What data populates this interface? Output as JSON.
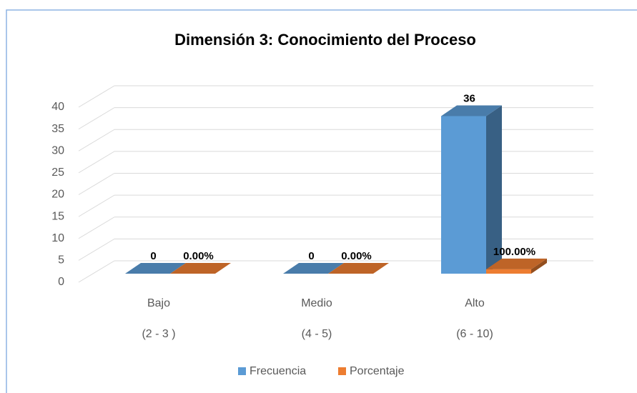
{
  "chart_data": {
    "type": "bar3d",
    "title": "Dimensión 3: Conocimiento del Proceso",
    "categories": [
      "Bajo",
      "Medio",
      "Alto"
    ],
    "category_ranges": [
      "(2 - 3 )",
      "(4 - 5)",
      "(6 - 10)"
    ],
    "series": [
      {
        "name": "Frecuencia",
        "color": "#5b9bd5",
        "values": [
          0,
          0,
          36
        ]
      },
      {
        "name": "Porcentaje",
        "color": "#ed7d31",
        "values": [
          0,
          0,
          1
        ],
        "value_labels": [
          "0.00%",
          "0.00%",
          "100.00%"
        ]
      }
    ],
    "ylim": [
      0,
      40
    ],
    "yticks": [
      0,
      5,
      10,
      15,
      20,
      25,
      30,
      35,
      40
    ],
    "grid": true,
    "legend": "bottom"
  }
}
